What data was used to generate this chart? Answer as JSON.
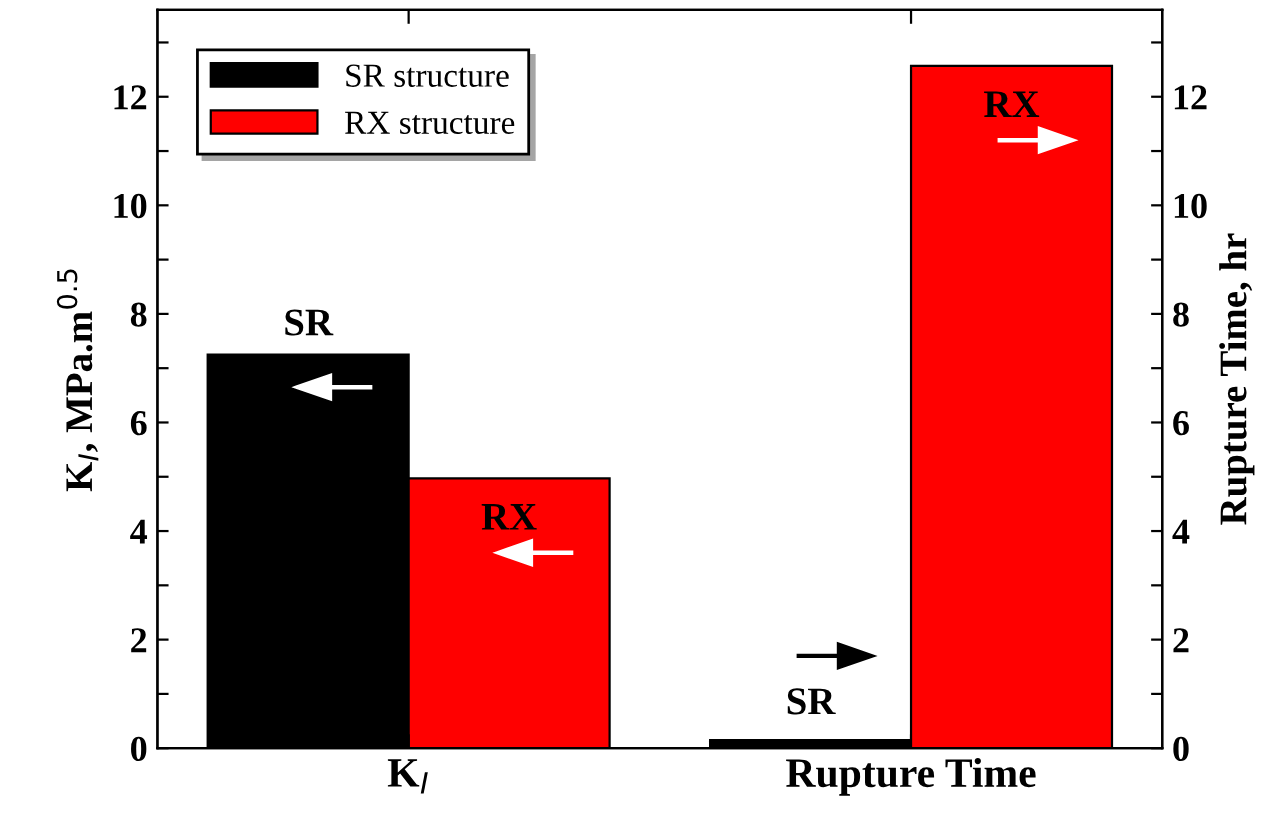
{
  "chart_data": {
    "type": "bar",
    "categories": [
      "K$_{I}$",
      "Rupture Time"
    ],
    "ylabel": "K$_{I}$, MPa.m$^{0.5}$",
    "y2label": "Rupture Time, hr",
    "series": [
      {
        "name": "SR structure",
        "color": "#000000",
        "values": [
          7.25,
          null
        ]
      },
      {
        "name": "RX structure",
        "color": "#ff0000",
        "values": [
          4.97,
          null
        ]
      },
      {
        "color": "#000000",
        "values": [
          null,
          0.15
        ],
        "axis": "y2"
      },
      {
        "color": "#ff0000",
        "values": [
          null,
          12.57
        ],
        "axis": "y2"
      }
    ],
    "ylim": [
      0,
      13.6
    ],
    "yticks": [
      0,
      {
        "value": 1,
        "label": null
      },
      2,
      {
        "value": 3,
        "label": null
      },
      4,
      {
        "value": 5,
        "label": null
      },
      6,
      {
        "value": 7,
        "label": null
      },
      8,
      {
        "value": 9,
        "label": null
      },
      10,
      {
        "value": 11,
        "label": null
      },
      12,
      {
        "value": 13,
        "label": null
      }
    ],
    "y2lim": [
      0,
      13.6
    ],
    "y2ticks": [
      0,
      {
        "value": 1,
        "label": null
      },
      2,
      {
        "value": 3,
        "label": null
      },
      4,
      {
        "value": 5,
        "label": null
      },
      6,
      {
        "value": 7,
        "label": null
      },
      8,
      {
        "value": 9,
        "label": null
      },
      10,
      {
        "value": 11,
        "label": null
      },
      12,
      {
        "value": 13,
        "label": null
      }
    ],
    "annotations": [
      {
        "text": "SR",
        "x": "K$_{I}$",
        "y": 7.25
      },
      {
        "text": "RX",
        "x": "K$_{I}$",
        "y": 4.2
      },
      {
        "text": "SR",
        "x": "Rupture Time",
        "y": 0.8
      },
      {
        "text": "RX",
        "x": "Rupture Time",
        "y": 11.8
      }
    ],
    "legend": "top left",
    "grid": false
  }
}
